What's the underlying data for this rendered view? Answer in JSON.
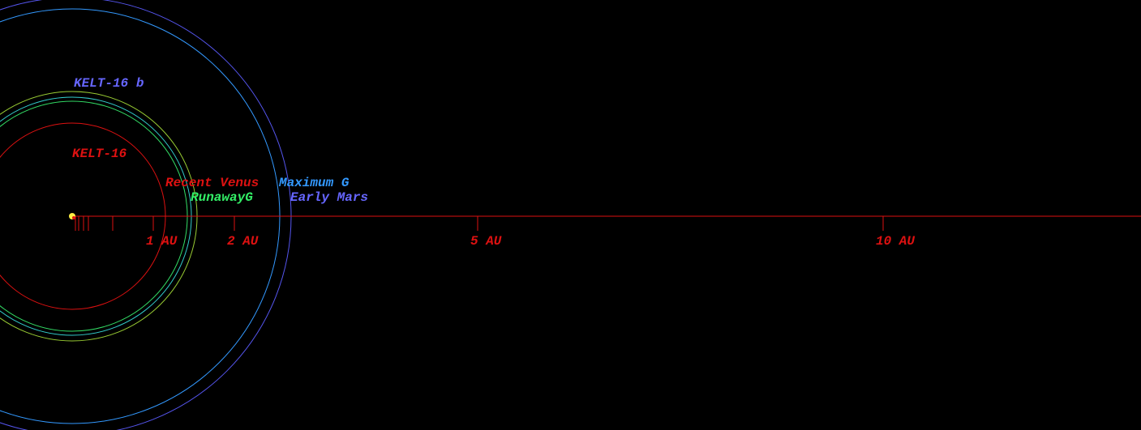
{
  "star": {
    "name": "KELT-16"
  },
  "planet": {
    "name": "KELT-16 b"
  },
  "zones": {
    "recent_venus": "Recent Venus",
    "runaway_greenhouse": "RunawayG",
    "maximum_greenhouse": "Maximum G",
    "early_mars": "Early Mars"
  },
  "axis": {
    "labels": [
      "1 AU",
      "2 AU",
      "5 AU",
      "10 AU"
    ]
  }
}
